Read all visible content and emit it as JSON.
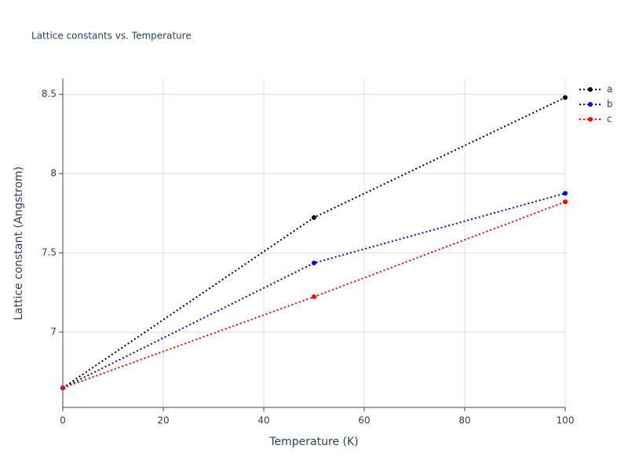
{
  "chart_data": {
    "type": "line",
    "title": "Lattice constants vs. Temperature",
    "x_label": "Temperature (K)",
    "y_label": "Lattice constant (Angstrom)",
    "x": [
      0,
      50,
      100
    ],
    "series": [
      {
        "name": "a",
        "color": "#000000",
        "values": [
          6.648,
          7.723,
          8.48
        ]
      },
      {
        "name": "b",
        "color": "#0000ff",
        "values": [
          6.648,
          7.436,
          7.876
        ]
      },
      {
        "name": "c",
        "color": "#ff0000",
        "values": [
          6.648,
          7.223,
          7.822
        ]
      }
    ],
    "xlim": [
      0,
      100
    ],
    "xticks": [
      0,
      20,
      40,
      60,
      80,
      100
    ],
    "ylim": [
      6.525,
      8.6
    ],
    "yticks": [
      7,
      7.5,
      8,
      8.5
    ],
    "grid": true,
    "legend": "top-right",
    "line_style": "dotted"
  }
}
